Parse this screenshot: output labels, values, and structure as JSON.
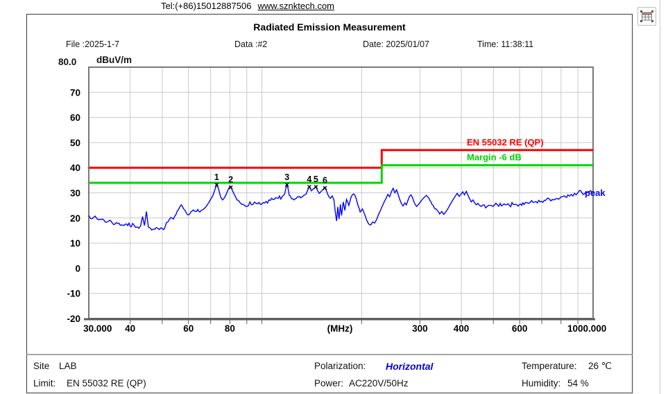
{
  "contact": {
    "tel": "Tel:(+86)15012887506",
    "url": "www.sznktech.com"
  },
  "header": {
    "title": "Radiated Emission Measurement",
    "file": "File :2025-1-7",
    "data_no": "Data :#2",
    "date": "Date: 2025/01/07",
    "time": "Time: 11:38:11"
  },
  "toolbar": {
    "capture_icon": "table-capture"
  },
  "chart_data": {
    "type": "line",
    "title": "Radiated Emission Measurement",
    "x_axis": {
      "label": "(MHz)",
      "scale": "log",
      "min": 30,
      "max": 1000,
      "ticks": [
        {
          "label": "30.000",
          "f": 31.9
        },
        {
          "label": "40",
          "f": 40
        },
        {
          "label": "60",
          "f": 60
        },
        {
          "label": "80",
          "f": 80
        },
        {
          "label": "(MHz)",
          "f": 172
        },
        {
          "label": "300",
          "f": 300
        },
        {
          "label": "400",
          "f": 400
        },
        {
          "label": "600",
          "f": 600
        },
        {
          "label": "1000.000",
          "f": 958
        }
      ],
      "grid_freqs": [
        40,
        50,
        60,
        70,
        80,
        90,
        100,
        200,
        300,
        400,
        500,
        600,
        700,
        800,
        900
      ]
    },
    "y_axis": {
      "unit": "dBuV/m",
      "top_label": "80.0",
      "min": -20,
      "max": 80,
      "tick_values": [
        70,
        60,
        50,
        40,
        30,
        20,
        10,
        0,
        -10,
        -20
      ],
      "grid_values": [
        70,
        60,
        50,
        40,
        30,
        20,
        10,
        0,
        -10
      ]
    },
    "limits": [
      {
        "name": "EN 55032 RE (QP)",
        "color": "#ff0000",
        "points": [
          [
            30,
            40
          ],
          [
            230,
            40
          ],
          [
            230,
            47
          ],
          [
            1000,
            47
          ]
        ]
      },
      {
        "name": "Margin -6 dB",
        "color": "#00d400",
        "points": [
          [
            30,
            34
          ],
          [
            230,
            34
          ],
          [
            230,
            41
          ],
          [
            1000,
            41
          ]
        ]
      }
    ],
    "markers": [
      {
        "n": "1",
        "f": 73,
        "db": 33.4
      },
      {
        "n": "2",
        "f": 80.5,
        "db": 32.5
      },
      {
        "n": "3",
        "f": 119,
        "db": 33.5
      },
      {
        "n": "4",
        "f": 139,
        "db": 32.6
      },
      {
        "n": "5",
        "f": 145.5,
        "db": 32.6
      },
      {
        "n": "6",
        "f": 155,
        "db": 32.2
      }
    ],
    "series": [
      {
        "name": "peak",
        "color": "#0000ff",
        "end_label": "peak",
        "points": [
          [
            30,
            21
          ],
          [
            31,
            20.2
          ],
          [
            32,
            19.3
          ],
          [
            33,
            19.6
          ],
          [
            34,
            18.4
          ],
          [
            35,
            18.8
          ],
          [
            36,
            17.6
          ],
          [
            37,
            17.9
          ],
          [
            38,
            17.2
          ],
          [
            39,
            17.6
          ],
          [
            40,
            16.8
          ],
          [
            41,
            17.3
          ],
          [
            42,
            16.4
          ],
          [
            43,
            16.8
          ],
          [
            43.6,
            20.6
          ],
          [
            44.2,
            17
          ],
          [
            44.8,
            22.6
          ],
          [
            45.4,
            16.4
          ],
          [
            46,
            16
          ],
          [
            47,
            15.6
          ],
          [
            48,
            16.2
          ],
          [
            49,
            15.4
          ],
          [
            50,
            15.8
          ],
          [
            51,
            16.4
          ],
          [
            52,
            18.4
          ],
          [
            53,
            20.2
          ],
          [
            54,
            19.6
          ],
          [
            55,
            21.4
          ],
          [
            56,
            23.4
          ],
          [
            57,
            25.2
          ],
          [
            58,
            23.6
          ],
          [
            59,
            22.2
          ],
          [
            60,
            21.2
          ],
          [
            61,
            22.4
          ],
          [
            62,
            23.2
          ],
          [
            63,
            22.6
          ],
          [
            64,
            23.4
          ],
          [
            65,
            22.4
          ],
          [
            66,
            23.2
          ],
          [
            67,
            23.8
          ],
          [
            68,
            24.8
          ],
          [
            69,
            26
          ],
          [
            70,
            27.4
          ],
          [
            71,
            28.8
          ],
          [
            72,
            31
          ],
          [
            73,
            33.4
          ],
          [
            74,
            31.4
          ],
          [
            75,
            28.4
          ],
          [
            76,
            27.2
          ],
          [
            77,
            28
          ],
          [
            78,
            29.4
          ],
          [
            79,
            31.2
          ],
          [
            80.5,
            32.5
          ],
          [
            81.5,
            30.8
          ],
          [
            82.5,
            29.4
          ],
          [
            84,
            27.2
          ],
          [
            86,
            26
          ],
          [
            88,
            25.4
          ],
          [
            90,
            24.6
          ],
          [
            92,
            26.4
          ],
          [
            94,
            25.4
          ],
          [
            96,
            25.8
          ],
          [
            98,
            26.2
          ],
          [
            100,
            25.6
          ],
          [
            103,
            26.6
          ],
          [
            106,
            27
          ],
          [
            109,
            27.4
          ],
          [
            112,
            27.8
          ],
          [
            115,
            28.4
          ],
          [
            117,
            29.4
          ],
          [
            119,
            33.5
          ],
          [
            121,
            29
          ],
          [
            123,
            27.6
          ],
          [
            125,
            27.2
          ],
          [
            127,
            27.8
          ],
          [
            129,
            28.4
          ],
          [
            131,
            28
          ],
          [
            133,
            28.6
          ],
          [
            135,
            29.2
          ],
          [
            137,
            30.6
          ],
          [
            139,
            32.6
          ],
          [
            141,
            30.8
          ],
          [
            143,
            31.6
          ],
          [
            145.5,
            32.6
          ],
          [
            147,
            31
          ],
          [
            149,
            29.8
          ],
          [
            151,
            30.6
          ],
          [
            153,
            31.4
          ],
          [
            155,
            32.2
          ],
          [
            157,
            30.4
          ],
          [
            159,
            28.6
          ],
          [
            161,
            27.8
          ],
          [
            163,
            28.8
          ],
          [
            165,
            27.2
          ],
          [
            166.5,
            22.6
          ],
          [
            168,
            18.8
          ],
          [
            169.5,
            24.4
          ],
          [
            171,
            19.6
          ],
          [
            172.5,
            25.4
          ],
          [
            174,
            21
          ],
          [
            176,
            26.4
          ],
          [
            178,
            23
          ],
          [
            180,
            27.4
          ],
          [
            183,
            25
          ],
          [
            186,
            28.4
          ],
          [
            189,
            29.6
          ],
          [
            192,
            28.2
          ],
          [
            195,
            25
          ],
          [
            198,
            22.4
          ],
          [
            201,
            23.6
          ],
          [
            204,
            21.6
          ],
          [
            207,
            19.2
          ],
          [
            210,
            17.6
          ],
          [
            213,
            17.2
          ],
          [
            216,
            18.4
          ],
          [
            219,
            18
          ],
          [
            222,
            19.4
          ],
          [
            225,
            21.4
          ],
          [
            228,
            23
          ],
          [
            231,
            24.8
          ],
          [
            234,
            26.4
          ],
          [
            237,
            27.8
          ],
          [
            240,
            29.4
          ],
          [
            243,
            28.4
          ],
          [
            246,
            30.4
          ],
          [
            249,
            31.8
          ],
          [
            252,
            30
          ],
          [
            255,
            31.2
          ],
          [
            258,
            29.2
          ],
          [
            261,
            27.2
          ],
          [
            264,
            25.6
          ],
          [
            267,
            24.8
          ],
          [
            270,
            26
          ],
          [
            273,
            25.2
          ],
          [
            276,
            27
          ],
          [
            279,
            28.6
          ],
          [
            282,
            29.2
          ],
          [
            285,
            28
          ],
          [
            289,
            25.8
          ],
          [
            293,
            24.6
          ],
          [
            297,
            25.4
          ],
          [
            301,
            26.4
          ],
          [
            305,
            27.4
          ],
          [
            309,
            28.2
          ],
          [
            314,
            29
          ],
          [
            319,
            28
          ],
          [
            324,
            26.4
          ],
          [
            329,
            25
          ],
          [
            334,
            23.6
          ],
          [
            339,
            22.8
          ],
          [
            344,
            21.6
          ],
          [
            349,
            22.6
          ],
          [
            354,
            21.4
          ],
          [
            359,
            22.4
          ],
          [
            364,
            23.6
          ],
          [
            369,
            25
          ],
          [
            374,
            26.4
          ],
          [
            379,
            27.6
          ],
          [
            384,
            28.8
          ],
          [
            389,
            29.8
          ],
          [
            394,
            28.6
          ],
          [
            399,
            29.4
          ],
          [
            404,
            30.4
          ],
          [
            409,
            29.2
          ],
          [
            414,
            30.6
          ],
          [
            419,
            29
          ],
          [
            424,
            27.6
          ],
          [
            429,
            26.4
          ],
          [
            434,
            27.2
          ],
          [
            439,
            26
          ],
          [
            444,
            25.2
          ],
          [
            449,
            25.8
          ],
          [
            454,
            25
          ],
          [
            459,
            24.6
          ],
          [
            469,
            25.2
          ],
          [
            479,
            24.6
          ],
          [
            489,
            25
          ],
          [
            499,
            24.6
          ],
          [
            514,
            25.2
          ],
          [
            529,
            24.8
          ],
          [
            544,
            25.2
          ],
          [
            559,
            25
          ],
          [
            574,
            25.4
          ],
          [
            589,
            25.2
          ],
          [
            604,
            25.6
          ],
          [
            619,
            25.4
          ],
          [
            639,
            25.8
          ],
          [
            659,
            26.2
          ],
          [
            679,
            26
          ],
          [
            699,
            26.6
          ],
          [
            719,
            27
          ],
          [
            739,
            27.4
          ],
          [
            759,
            27.2
          ],
          [
            779,
            27.8
          ],
          [
            799,
            28.4
          ],
          [
            819,
            28.8
          ],
          [
            839,
            29.2
          ],
          [
            859,
            29.4
          ],
          [
            879,
            29.8
          ],
          [
            899,
            30
          ],
          [
            924,
            30.2
          ],
          [
            949,
            30.1
          ],
          [
            974,
            30.4
          ],
          [
            1000,
            30.6
          ]
        ]
      }
    ],
    "style": {
      "grid_color": "#c9c9c9",
      "frame_color": "#787878",
      "axis_color": "#5a5a5a"
    }
  },
  "footer": {
    "site_label": "Site",
    "site": "LAB",
    "limit_label": "Limit:",
    "limit": "EN 55032 RE (QP)",
    "polarization_label": "Polarization:",
    "polarization": "Horizontal",
    "polarization_color": "#0000dd",
    "power_label": "Power:",
    "power": "AC220V/50Hz",
    "temperature_label": "Temperature:",
    "temperature": "26 ℃",
    "humidity_label": "Humidity:",
    "humidity": "54 %"
  }
}
